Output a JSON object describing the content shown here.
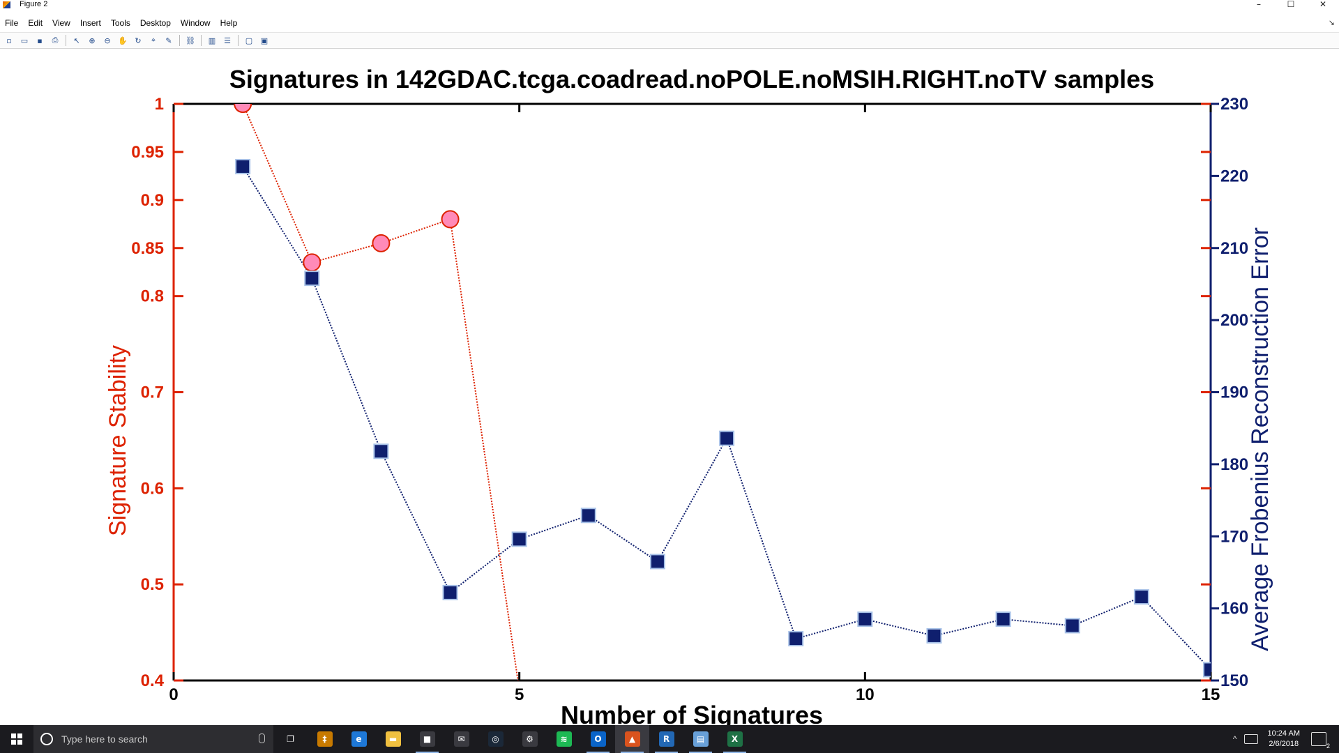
{
  "window": {
    "title": "Figure 2"
  },
  "menu": [
    "File",
    "Edit",
    "View",
    "Insert",
    "Tools",
    "Desktop",
    "Window",
    "Help"
  ],
  "toolbar_icons": [
    "new-figure-icon",
    "open-file-icon",
    "save-icon",
    "print-icon",
    "sep",
    "pointer-icon",
    "zoom-in-icon",
    "zoom-out-icon",
    "pan-hand-icon",
    "rotate-3d-icon",
    "data-cursor-icon",
    "brush-icon",
    "sep",
    "link-plot-icon",
    "sep",
    "colorbar-icon",
    "legend-icon",
    "sep",
    "hide-plot-tools-icon",
    "show-plot-tools-icon"
  ],
  "colors": {
    "stability": "#dd2200",
    "error": "#0f1f6e",
    "marker_pink": "#ff8ab8",
    "axes": "#000000"
  },
  "chart_data": {
    "type": "line",
    "title": "Signatures in 142GDAC.tcga.coadread.noPOLE.noMSIH.RIGHT.noTV samples",
    "xlabel": "Number of Signatures",
    "xlim": [
      0,
      15
    ],
    "xticks": [
      0,
      5,
      10,
      15
    ],
    "ylabel_left": "Signature Stability",
    "ylim_left": [
      0.4,
      1.0
    ],
    "yticks_left": [
      0.4,
      0.5,
      0.6,
      0.7,
      0.8,
      0.85,
      0.9,
      0.95,
      1
    ],
    "ytick_labels_left": [
      "0.4",
      "0.5",
      "0.6",
      "0.7",
      "0.8",
      "0.85",
      "0.9",
      "0.95",
      "1"
    ],
    "ylabel_right": "Average Frobenius Reconstruction Error",
    "ylim_right": [
      150,
      230
    ],
    "yticks_right": [
      150,
      160,
      170,
      180,
      190,
      200,
      210,
      220,
      230
    ],
    "series": [
      {
        "axis": "left",
        "marker": "circle",
        "x": [
          1,
          2,
          3,
          4,
          5
        ],
        "y": [
          1.0,
          0.835,
          0.855,
          0.88,
          0.39
        ]
      },
      {
        "axis": "right",
        "marker": "square",
        "x": [
          1,
          2,
          3,
          4,
          5,
          6,
          7,
          8,
          9,
          10,
          11,
          12,
          13,
          14,
          15
        ],
        "y": [
          221.3,
          205.8,
          181.8,
          162.2,
          169.6,
          172.9,
          166.5,
          183.6,
          155.8,
          158.5,
          156.2,
          158.5,
          157.6,
          161.6,
          151.5
        ]
      }
    ],
    "grid": false
  },
  "taskbar": {
    "search_placeholder": "Type here to search",
    "time": "10:24 AM",
    "date": "2/6/2018",
    "notification_count": "2",
    "apps": [
      {
        "name": "task-view-icon",
        "color": "#1b1b1f",
        "glyph": "❐"
      },
      {
        "name": "gradle-app-icon",
        "color": "#c87a00",
        "glyph": "‡"
      },
      {
        "name": "edge-browser-icon",
        "color": "#1e78d7",
        "glyph": "e"
      },
      {
        "name": "file-explorer-icon",
        "color": "#f0c040",
        "glyph": "▬"
      },
      {
        "name": "store-icon",
        "color": "#3a3a40",
        "glyph": "■"
      },
      {
        "name": "mail-icon",
        "color": "#3a3a40",
        "glyph": "✉"
      },
      {
        "name": "steam-icon",
        "color": "#1b2838",
        "glyph": "◎"
      },
      {
        "name": "settings-icon",
        "color": "#3a3a40",
        "glyph": "⚙"
      },
      {
        "name": "spotify-icon",
        "color": "#1db954",
        "glyph": "≋"
      },
      {
        "name": "outlook-icon",
        "color": "#0a64c8",
        "glyph": "O"
      },
      {
        "name": "matlab-icon",
        "color": "#d9531e",
        "glyph": "▲"
      },
      {
        "name": "r-studio-icon",
        "color": "#2268b5",
        "glyph": "R"
      },
      {
        "name": "notepad-icon",
        "color": "#68a0d8",
        "glyph": "▤"
      },
      {
        "name": "excel-icon",
        "color": "#1e7145",
        "glyph": "X"
      }
    ]
  }
}
